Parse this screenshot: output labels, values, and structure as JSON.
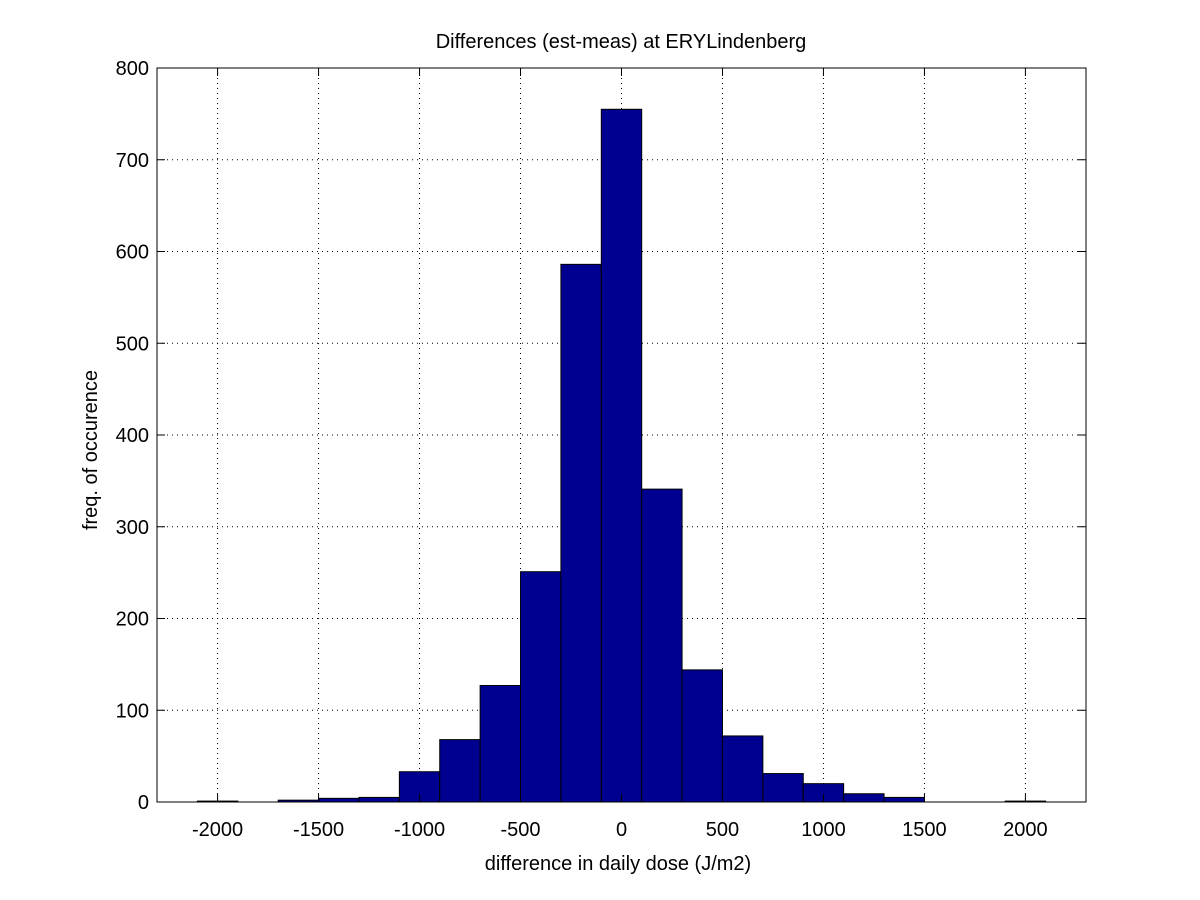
{
  "chart_data": {
    "type": "bar",
    "title": "Differences (est-meas) at ERYLindenberg",
    "xlabel": "difference in daily dose (J/m2)",
    "ylabel": "freq. of occurence",
    "xlim": [
      -2300,
      2300
    ],
    "ylim": [
      0,
      800
    ],
    "xticks": [
      -2000,
      -1500,
      -1000,
      -500,
      0,
      500,
      1000,
      1500,
      2000
    ],
    "yticks": [
      0,
      100,
      200,
      300,
      400,
      500,
      600,
      700,
      800
    ],
    "grid": true,
    "bin_width": 200,
    "bin_centers": [
      -2000,
      -1800,
      -1600,
      -1400,
      -1200,
      -1000,
      -800,
      -600,
      -400,
      -200,
      0,
      200,
      400,
      600,
      800,
      1000,
      1200,
      1400,
      1600,
      1800,
      2000
    ],
    "values": [
      1,
      0,
      2,
      4,
      5,
      33,
      68,
      127,
      251,
      586,
      755,
      341,
      144,
      72,
      31,
      20,
      9,
      5,
      0,
      0,
      1
    ],
    "bar_color": "#000090",
    "bar_edge_color": "#000000"
  }
}
